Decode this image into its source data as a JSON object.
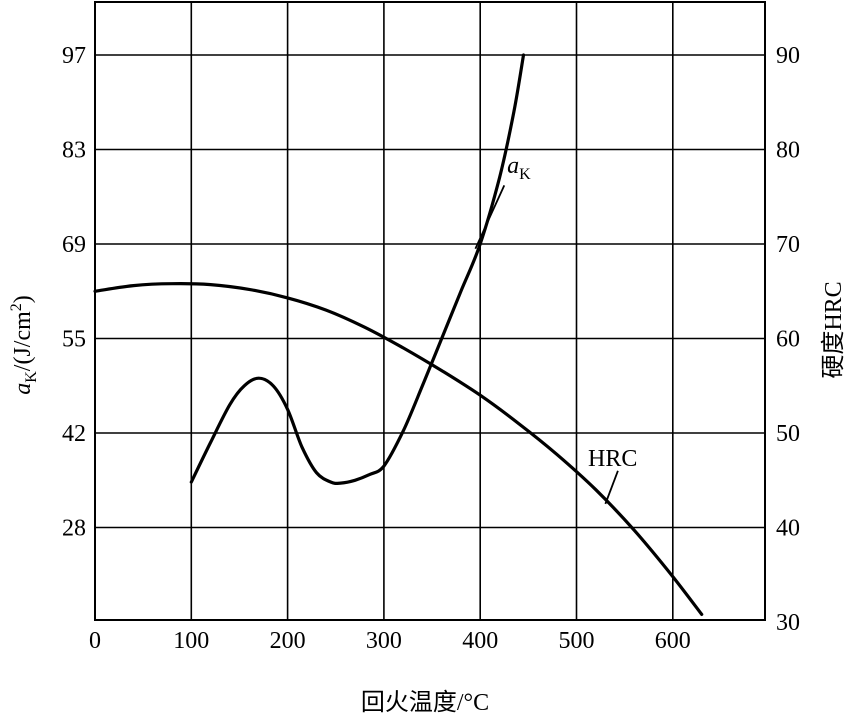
{
  "chart_data": {
    "type": "line",
    "xlabel": "回火温度/°C",
    "ylabel_left_parts": {
      "a": "a",
      "sub": "K",
      "units": "/(J/cm",
      "sup": "2",
      "close": ")"
    },
    "ylabel_right": "硬度HRC",
    "x_ticks": [
      0,
      100,
      200,
      300,
      400,
      500,
      600
    ],
    "xlim": [
      0,
      700
    ],
    "y_left_ticks": [
      "97",
      "83",
      "69",
      "55",
      "42",
      "28"
    ],
    "y_right_ticks": [
      90,
      80,
      70,
      60,
      50,
      40,
      30
    ],
    "y_right_lim": [
      30,
      90
    ],
    "grid": true,
    "series": [
      {
        "name": "a",
        "label_sub": "K",
        "axis": "right",
        "x": [
          100,
          120,
          140,
          155,
          170,
          185,
          200,
          215,
          230,
          245,
          255,
          270,
          285,
          300,
          320,
          340,
          360,
          380,
          400,
          420,
          435,
          445
        ],
        "y": [
          44.8,
          49,
          53,
          55,
          55.8,
          55,
          52.5,
          48.5,
          45.8,
          44.8,
          44.7,
          45.0,
          45.6,
          46.5,
          50.2,
          55,
          60,
          65,
          70,
          77,
          84,
          90
        ]
      },
      {
        "name": "HRC",
        "axis": "right",
        "x": [
          0,
          40,
          80,
          120,
          160,
          200,
          240,
          280,
          320,
          360,
          400,
          440,
          480,
          520,
          560,
          600,
          630
        ],
        "y": [
          65,
          65.6,
          65.8,
          65.7,
          65.2,
          64.3,
          63.0,
          61.2,
          59.0,
          56.6,
          54.0,
          51.0,
          47.7,
          44.0,
          39.7,
          34.8,
          30.8
        ]
      }
    ]
  }
}
